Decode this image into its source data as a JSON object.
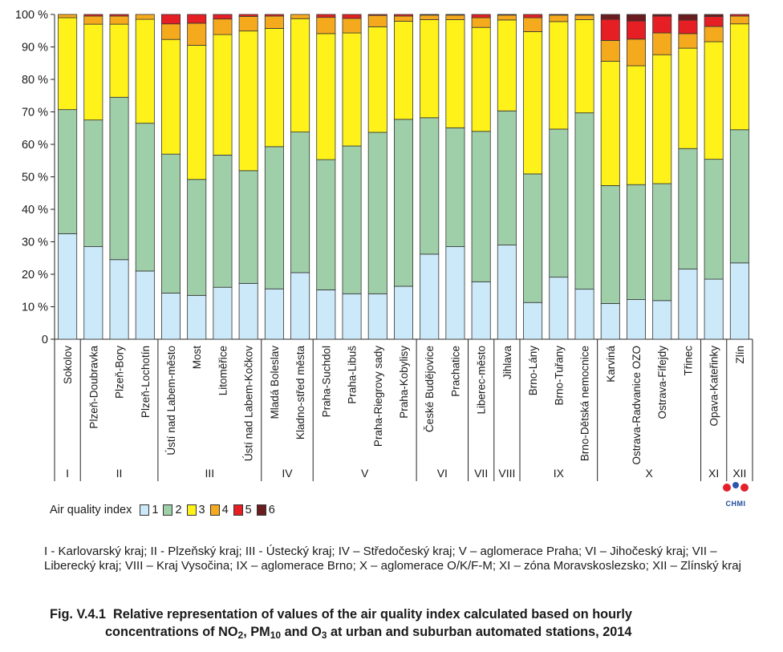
{
  "chart_data": {
    "type": "bar",
    "stacked": true,
    "ylim": [
      0,
      100
    ],
    "yticks": [
      "0",
      "10 %",
      "20 %",
      "30 %",
      "40 %",
      "50 %",
      "60 %",
      "70 %",
      "80 %",
      "90 %",
      "100 %"
    ],
    "categories": [
      "Sokolov",
      "Plzeň-Doubravka",
      "Plzeň-Bory",
      "Plzeň-Lochotín",
      "Ústí nad Labem-město",
      "Most",
      "Litoměřice",
      "Ústí nad Labem-Kočkov",
      "Mladá Boleslav",
      "Kladno-střed města",
      "Praha-Suchdol",
      "Praha-Libuš",
      "Praha-Riegrovy sady",
      "Praha-Kobylisy",
      "České Budějovice",
      "Prachatice",
      "Liberec-město",
      "Jihlava",
      "Brno-Lány",
      "Brno-Tuřany",
      "Brno-Dětská nemocnice",
      "Karviná",
      "Ostrava-Radvanice OZO",
      "Ostrava-Fifejdy",
      "Třinec",
      "Opava-Kateřinky",
      "Zlín"
    ],
    "series": [
      {
        "name": "1",
        "color": "#cce9f9",
        "values": [
          32.5,
          28.5,
          24.5,
          21.0,
          14.2,
          13.5,
          16.0,
          17.2,
          15.5,
          20.5,
          15.2,
          14.0,
          14.0,
          16.3,
          26.2,
          28.5,
          17.7,
          29.0,
          11.3,
          19.1,
          15.4,
          11.0,
          12.2,
          11.9,
          21.6,
          18.5,
          23.5
        ]
      },
      {
        "name": "2",
        "color": "#9fcfa8",
        "values": [
          38.2,
          39.0,
          50.0,
          45.5,
          42.8,
          35.7,
          40.7,
          34.7,
          43.8,
          43.3,
          40.1,
          45.5,
          49.7,
          51.4,
          42.0,
          36.6,
          46.3,
          41.3,
          39.6,
          45.6,
          54.3,
          36.3,
          35.4,
          36.0,
          37.1,
          36.9,
          41.0
        ]
      },
      {
        "name": "3",
        "color": "#fff21a",
        "values": [
          28.3,
          29.5,
          22.5,
          32.0,
          35.3,
          41.3,
          37.1,
          43.0,
          36.4,
          34.9,
          38.8,
          34.8,
          32.5,
          30.2,
          30.2,
          33.3,
          32.0,
          28.0,
          43.8,
          33.1,
          28.7,
          38.3,
          36.6,
          39.7,
          30.9,
          36.2,
          32.6
        ]
      },
      {
        "name": "4",
        "color": "#f5a91c",
        "values": [
          1.0,
          2.5,
          2.5,
          1.5,
          4.8,
          6.8,
          4.8,
          4.5,
          3.8,
          1.3,
          5.0,
          4.5,
          3.5,
          1.6,
          1.4,
          1.4,
          3.0,
          1.5,
          4.3,
          2.0,
          1.4,
          6.4,
          8.2,
          6.7,
          4.5,
          4.7,
          2.4
        ]
      },
      {
        "name": "5",
        "color": "#e51f24",
        "values": [
          0.0,
          0.5,
          0.5,
          0.0,
          2.9,
          2.7,
          1.4,
          0.6,
          0.5,
          0.0,
          0.9,
          1.2,
          0.3,
          0.5,
          0.2,
          0.2,
          1.0,
          0.2,
          1.0,
          0.2,
          0.2,
          6.5,
          5.6,
          5.2,
          4.2,
          3.1,
          0.5
        ]
      },
      {
        "name": "6",
        "color": "#6b1c1e",
        "values": [
          0.0,
          0.0,
          0.0,
          0.0,
          0.0,
          0.0,
          0.0,
          0.0,
          0.0,
          0.0,
          0.0,
          0.0,
          0.0,
          0.0,
          0.0,
          0.0,
          0.0,
          0.0,
          0.0,
          0.0,
          0.0,
          1.5,
          2.0,
          0.5,
          1.7,
          0.6,
          0.0
        ]
      }
    ],
    "regions": [
      {
        "label": "I",
        "count": 1
      },
      {
        "label": "II",
        "count": 3
      },
      {
        "label": "III",
        "count": 4
      },
      {
        "label": "IV",
        "count": 2
      },
      {
        "label": "V",
        "count": 4
      },
      {
        "label": "VI",
        "count": 2
      },
      {
        "label": "VII",
        "count": 1
      },
      {
        "label": "VIII",
        "count": 1
      },
      {
        "label": "IX",
        "count": 3
      },
      {
        "label": "X",
        "count": 4
      },
      {
        "label": "XI",
        "count": 1
      },
      {
        "label": "XII",
        "count": 1
      }
    ]
  },
  "legend": {
    "title": "Air quality index",
    "items": [
      {
        "label": "1",
        "color": "#cce9f9"
      },
      {
        "label": "2",
        "color": "#9fcfa8"
      },
      {
        "label": "3",
        "color": "#fff21a"
      },
      {
        "label": "4",
        "color": "#f5a91c"
      },
      {
        "label": "5",
        "color": "#e51f24"
      },
      {
        "label": "6",
        "color": "#6b1c1e"
      }
    ]
  },
  "logo": {
    "text": "CHMI"
  },
  "region_note": "I - Karlovarský kraj; II - Plzeňský kraj; III - Ústecký kraj; IV – Středočeský kraj; V – aglomerace Praha; VI – Jihočeský kraj; VII – Liberecký kraj; VIII – Kraj Vysočina; IX – aglomerace Brno; X – aglomerace O/K/F-M; XI – zóna Moravskoslezsko; XII – Zlínský kraj",
  "caption": {
    "prefix": "Fig. V.4.1",
    "line1": "Relative representation of values of the air quality index calculated based on hourly",
    "line2_a": "concentrations of NO",
    "sub1": "2",
    "line2_b": ", PM",
    "sub2": "10",
    "line2_c": " and O",
    "sub3": "3",
    "line2_d": " at urban and suburban automated stations, 2014"
  }
}
